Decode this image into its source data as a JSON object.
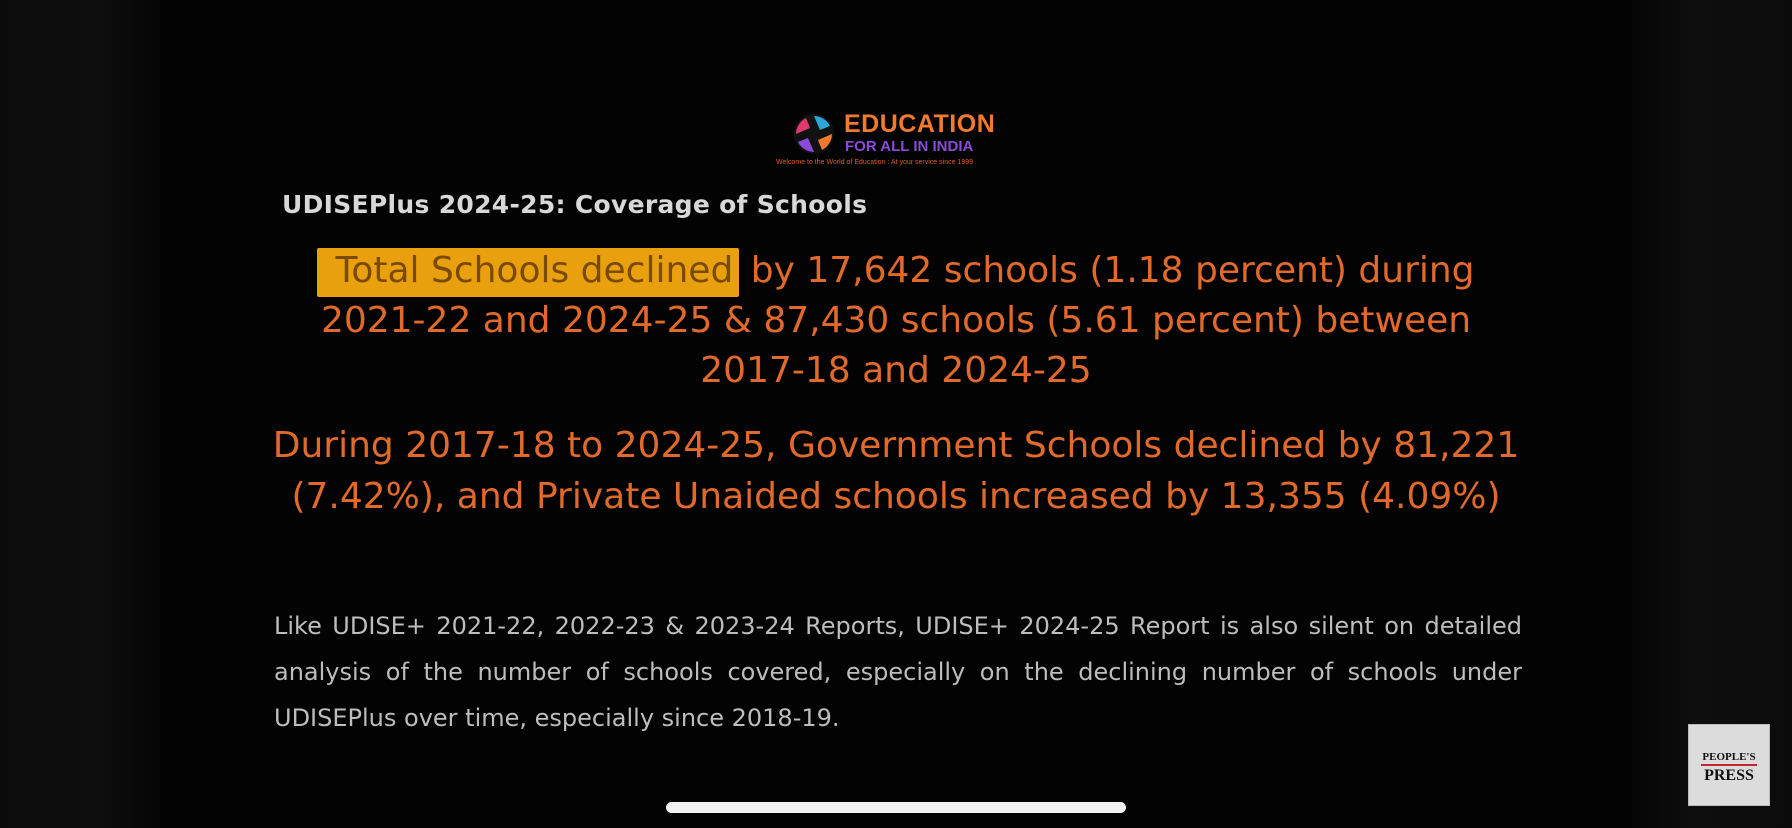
{
  "logo": {
    "title": "EDUCATION",
    "subtitle": "FOR ALL IN INDIA",
    "tagline": "Welcome to the World of Education : At your service since 1999",
    "colors": {
      "title": "#f07a2e",
      "subtitle": "#8b4ad8"
    }
  },
  "slide": {
    "title": "UDISEPlus 2024-25: Coverage of Schools",
    "headline_highlight": "Total Schools declined",
    "headline_rest": " by 17,642 schools (1.18 percent) during 2021-22 and 2024-25 & 87,430 schools (5.61 percent) between 2017-18 and 2024-25",
    "headline2": "During 2017-18 to 2024-25, Government Schools declined by 81,221 (7.42%), and Private Unaided schools increased by 13,355 (4.09%)",
    "body": "Like UDISE+ 2021-22, 2022-23 & 2023-24 Reports, UDISE+ 2024-25 Report is also silent on detailed analysis of the number of schools covered, especially on the declining number of schools under UDISEPlus over time, especially since 2018-19."
  },
  "badge": {
    "top": "PEOPLE'S",
    "bottom": "PRESS"
  },
  "colors": {
    "accent_text": "#e0692b",
    "highlight_bg": "#e8a00f",
    "body_text": "#bdbdbd"
  }
}
